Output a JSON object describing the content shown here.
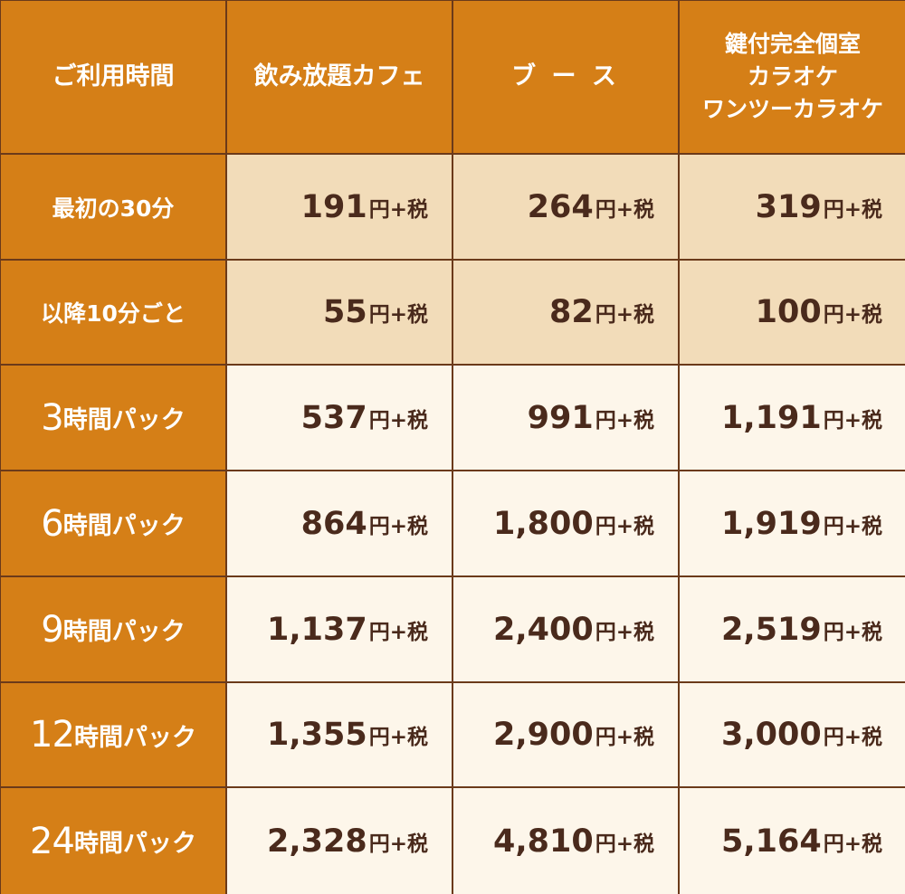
{
  "columns": [
    "ご利用時間",
    "飲み放題カフェ",
    "ブ ー ス",
    [
      "鍵付完全個室",
      "カラオケ",
      "ワンツーカラオケ"
    ]
  ],
  "tax_suffix": "円+税",
  "rows": [
    {
      "label_num": "",
      "label_text": "最初の30分",
      "prices": [
        "191",
        "264",
        "319"
      ]
    },
    {
      "label_num": "",
      "label_text": "以降10分ごと",
      "prices": [
        "55",
        "82",
        "100"
      ]
    },
    {
      "label_num": "3",
      "label_text": "時間パック",
      "prices": [
        "537",
        "991",
        "1,191"
      ]
    },
    {
      "label_num": "6",
      "label_text": "時間パック",
      "prices": [
        "864",
        "1,800",
        "1,919"
      ]
    },
    {
      "label_num": "9",
      "label_text": "時間パック",
      "prices": [
        "1,137",
        "2,400",
        "2,519"
      ]
    },
    {
      "label_num": "12",
      "label_text": "時間パック",
      "prices": [
        "1,355",
        "2,900",
        "3,000"
      ]
    },
    {
      "label_num": "24",
      "label_text": "時間パック",
      "prices": [
        "2,328",
        "4,810",
        "5,164"
      ]
    }
  ],
  "colors": {
    "header_bg": "#d57f17",
    "tan_bg": "#f2dcb9",
    "cream_bg": "#fdf6ea",
    "text_dark": "#4a2a1c",
    "border": "#6b3a1a"
  }
}
